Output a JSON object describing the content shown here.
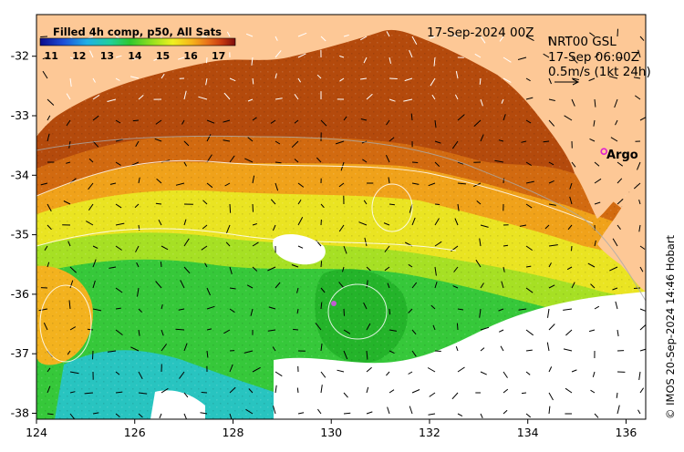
{
  "map": {
    "lon_range": [
      124,
      136.4
    ],
    "lat_range": [
      -38.1,
      -31.3
    ],
    "x_ticks": [
      124,
      126,
      128,
      130,
      132,
      134,
      136
    ],
    "y_ticks": [
      -32,
      -33,
      -34,
      -35,
      -36,
      -37,
      -38
    ],
    "x_tick_labels": [
      "124",
      "126",
      "128",
      "130",
      "132",
      "134",
      "136"
    ],
    "y_tick_labels": [
      "-32",
      "-33",
      "-34",
      "-35",
      "-36",
      "-37",
      "-38"
    ],
    "land_color": "#fdc896",
    "no_data_color": "#ffffff"
  },
  "colorbar": {
    "title": "Filled 4h comp, p50, All Sats",
    "tick_labels": [
      "11",
      "12",
      "13",
      "14",
      "15",
      "16",
      "17"
    ],
    "range": [
      10.6,
      17.6
    ],
    "colors": [
      "#0b0b8c",
      "#1e4fd8",
      "#1fb0e6",
      "#20d09a",
      "#2ec82e",
      "#9be21e",
      "#f0f020",
      "#f6b21a",
      "#e8701a",
      "#c83a10",
      "#7d0d0d"
    ]
  },
  "header": {
    "date": "17-Sep-2024 00Z",
    "product": "NRT00 GSL",
    "vector_time": "17-Sep 06:00Z",
    "scale_label": "0.5m/s (1kt 24h)"
  },
  "argo": {
    "label": "Argo",
    "lon": 135.55,
    "lat": -33.6,
    "color": "#e020d0"
  },
  "credit": "© IMOS 20-Sep-2024 14:46 Hobart"
}
